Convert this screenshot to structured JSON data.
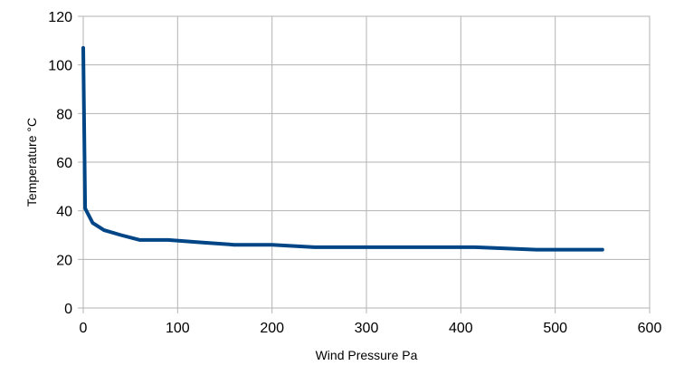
{
  "chart_data": {
    "type": "line",
    "title": "",
    "xlabel": "Wind Pressure Pa",
    "ylabel": "Temperature °C",
    "xlim": [
      0,
      600
    ],
    "ylim": [
      0,
      120
    ],
    "x_ticks": [
      0,
      100,
      200,
      300,
      400,
      500,
      600
    ],
    "y_ticks": [
      0,
      20,
      40,
      60,
      80,
      100,
      120
    ],
    "grid": true,
    "legend": "none",
    "series": [
      {
        "color": "#004586",
        "x": [
          0,
          2,
          10,
          22,
          40,
          60,
          90,
          125,
          160,
          200,
          245,
          300,
          350,
          415,
          480,
          550
        ],
        "y": [
          107,
          41,
          35,
          32,
          30,
          28,
          28,
          27,
          26,
          26,
          25,
          25,
          25,
          25,
          24,
          24
        ]
      }
    ]
  }
}
